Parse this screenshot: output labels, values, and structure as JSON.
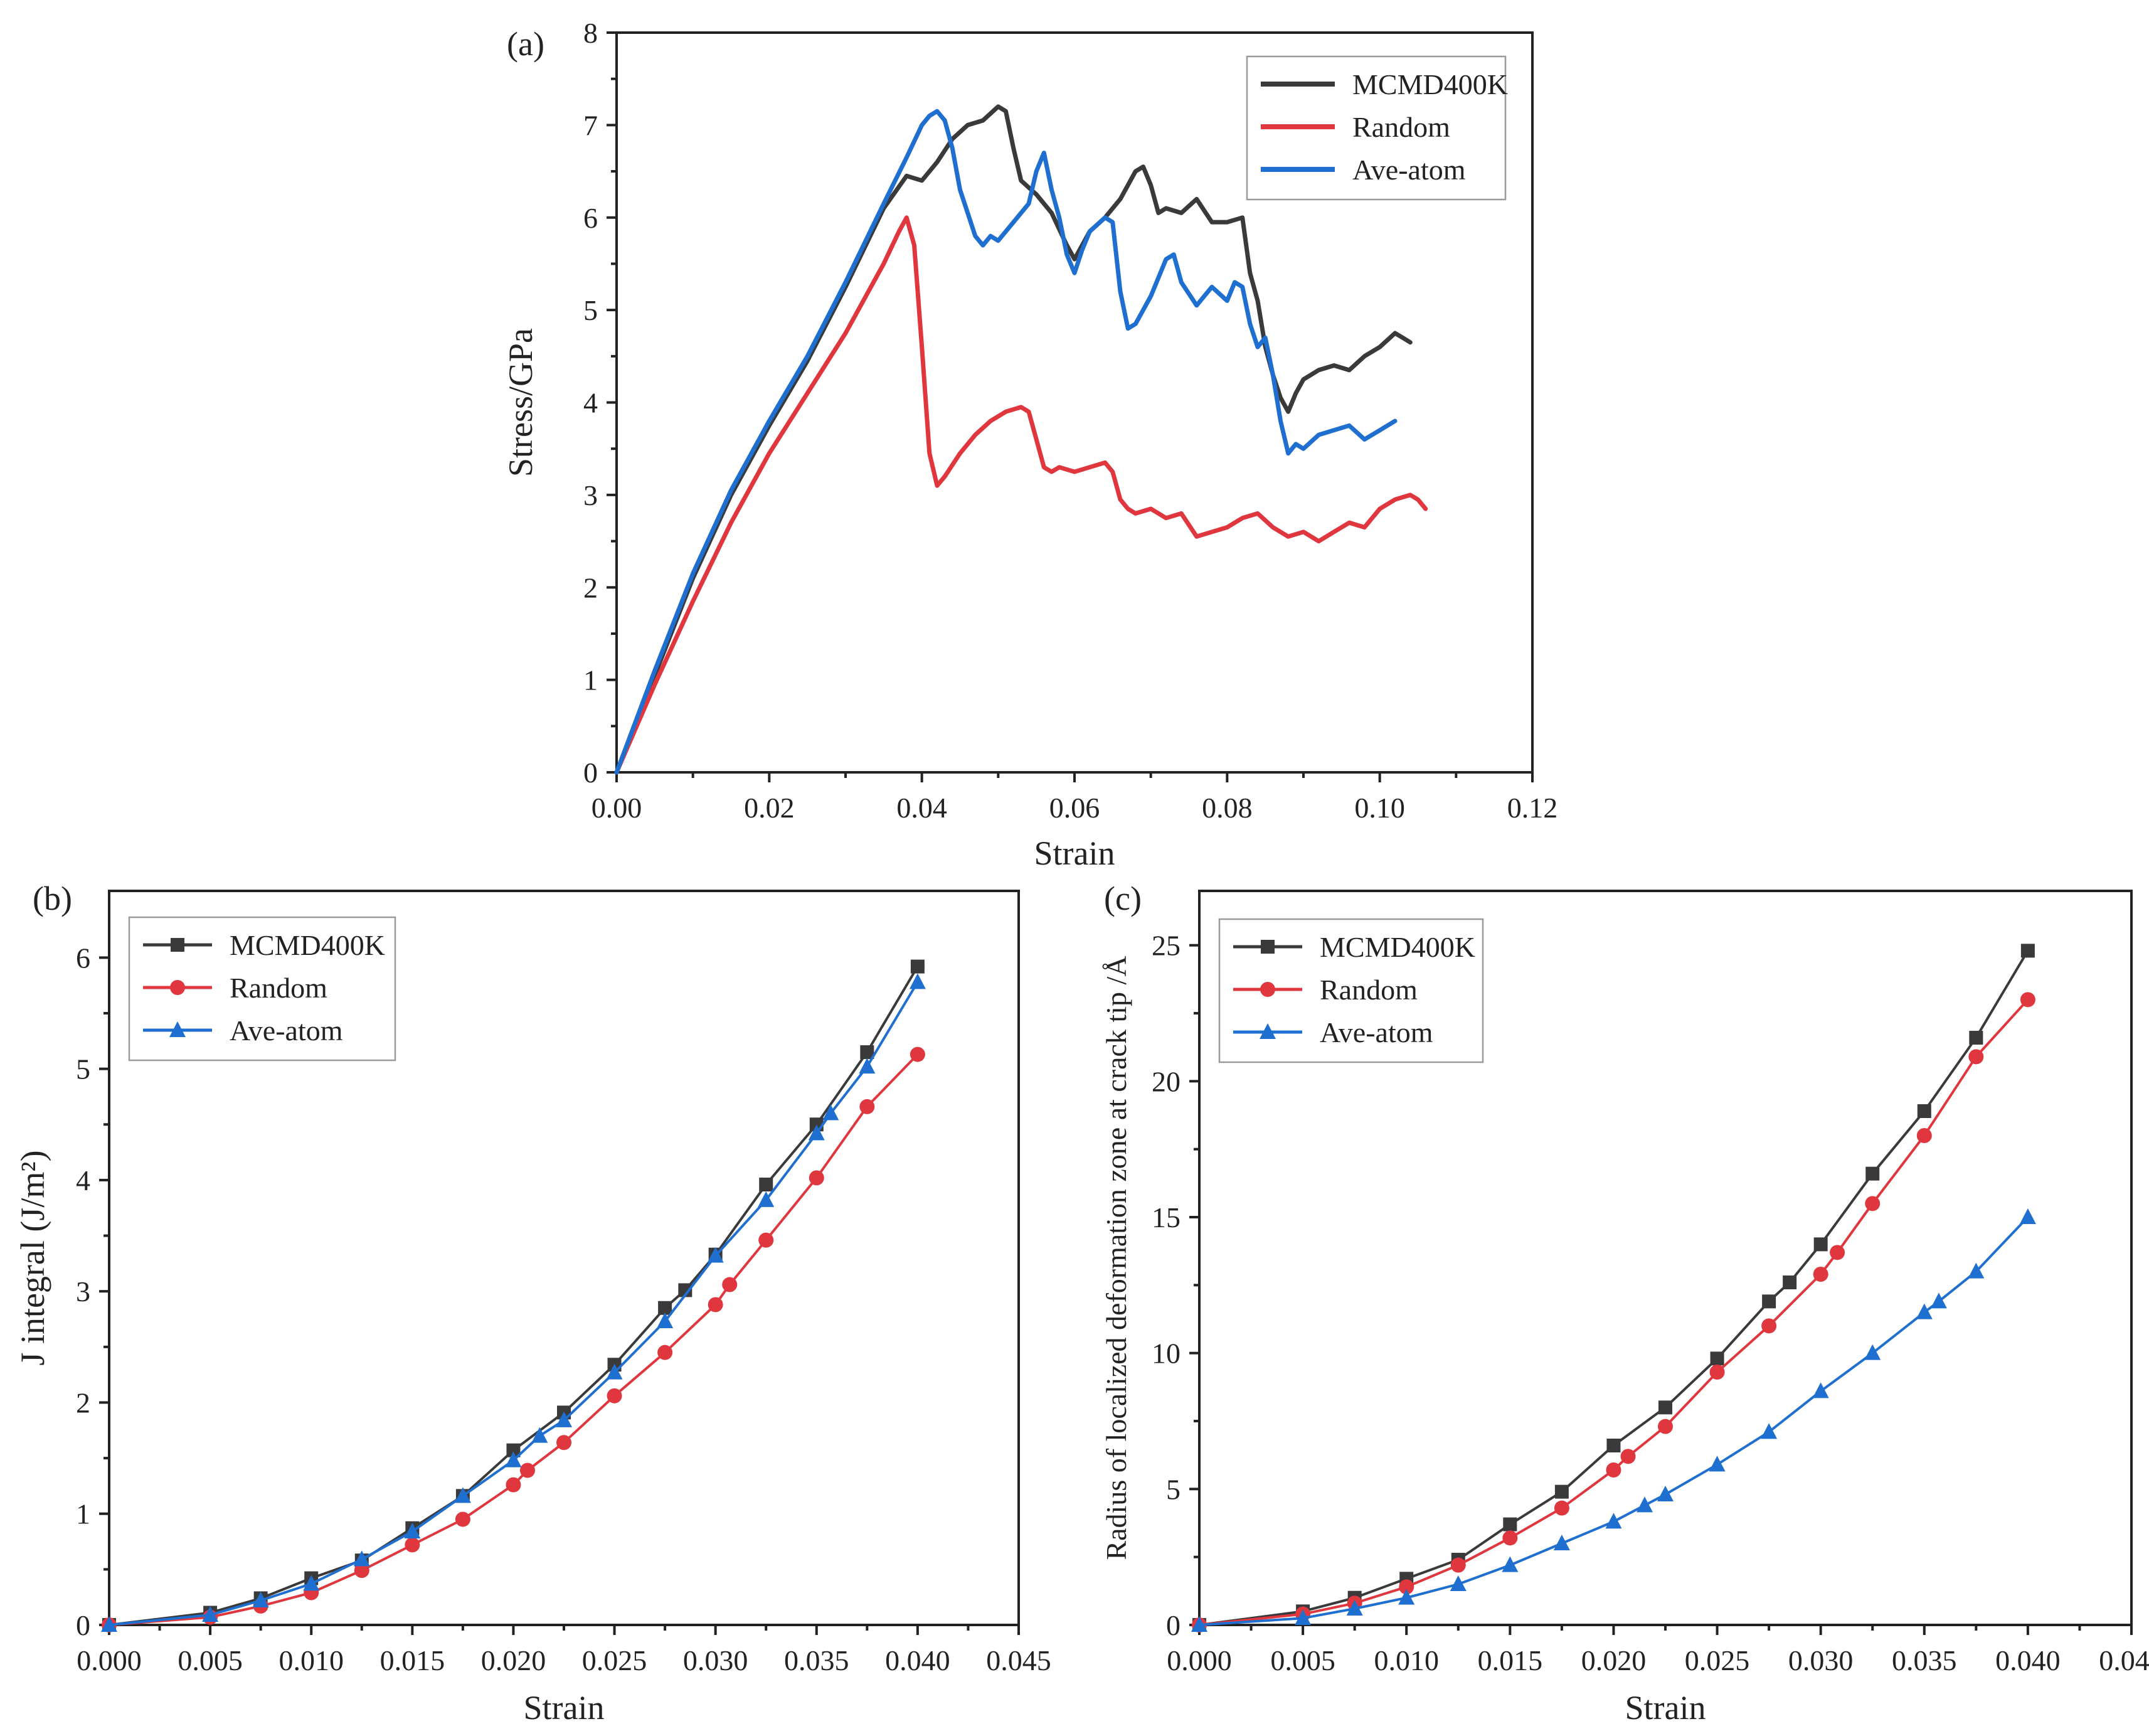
{
  "chart_data": [
    {
      "id": "a",
      "type": "line",
      "panel_label": "(a)",
      "xlabel": "Strain",
      "ylabel": "Stress/GPa",
      "xlim": [
        0,
        0.12
      ],
      "ylim": [
        0,
        8
      ],
      "xticks": [
        0,
        0.02,
        0.04,
        0.06,
        0.08,
        0.1,
        0.12
      ],
      "xtick_labels": [
        "0.00",
        "0.02",
        "0.04",
        "0.06",
        "0.08",
        "0.10",
        "0.12"
      ],
      "yticks": [
        0,
        1,
        2,
        3,
        4,
        5,
        6,
        7,
        8
      ],
      "ytick_labels": [
        "0",
        "1",
        "2",
        "3",
        "4",
        "5",
        "6",
        "7",
        "8"
      ],
      "legend_position": "top-right",
      "series": [
        {
          "name": "MCMD400K",
          "color": "#3a3a3a",
          "x": [
            0,
            0.005,
            0.01,
            0.015,
            0.02,
            0.025,
            0.03,
            0.035,
            0.038,
            0.04,
            0.042,
            0.044,
            0.046,
            0.048,
            0.05,
            0.051,
            0.052,
            0.053,
            0.055,
            0.057,
            0.059,
            0.06,
            0.061,
            0.062,
            0.064,
            0.066,
            0.068,
            0.069,
            0.07,
            0.071,
            0.072,
            0.074,
            0.076,
            0.078,
            0.08,
            0.082,
            0.083,
            0.084,
            0.085,
            0.086,
            0.087,
            0.088,
            0.089,
            0.09,
            0.092,
            0.094,
            0.096,
            0.098,
            0.1,
            0.102,
            0.103,
            0.104
          ],
          "y": [
            0,
            1.05,
            2.1,
            3.0,
            3.75,
            4.45,
            5.25,
            6.1,
            6.45,
            6.4,
            6.6,
            6.85,
            7.0,
            7.05,
            7.2,
            7.15,
            6.75,
            6.4,
            6.25,
            6.05,
            5.7,
            5.55,
            5.7,
            5.85,
            6.0,
            6.2,
            6.5,
            6.55,
            6.35,
            6.05,
            6.1,
            6.05,
            6.2,
            5.95,
            5.95,
            6.0,
            5.4,
            5.1,
            4.6,
            4.3,
            4.05,
            3.9,
            4.1,
            4.25,
            4.35,
            4.4,
            4.35,
            4.5,
            4.6,
            4.75,
            4.7,
            4.65
          ]
        },
        {
          "name": "Random",
          "color": "#e0373f",
          "x": [
            0,
            0.005,
            0.01,
            0.015,
            0.02,
            0.025,
            0.03,
            0.035,
            0.037,
            0.038,
            0.039,
            0.04,
            0.041,
            0.042,
            0.043,
            0.045,
            0.047,
            0.049,
            0.051,
            0.053,
            0.054,
            0.055,
            0.056,
            0.057,
            0.058,
            0.06,
            0.062,
            0.064,
            0.065,
            0.066,
            0.067,
            0.068,
            0.07,
            0.072,
            0.074,
            0.076,
            0.078,
            0.08,
            0.082,
            0.084,
            0.086,
            0.088,
            0.09,
            0.092,
            0.094,
            0.096,
            0.098,
            0.1,
            0.102,
            0.104,
            0.105,
            0.106
          ],
          "y": [
            0,
            0.95,
            1.85,
            2.7,
            3.45,
            4.1,
            4.75,
            5.5,
            5.85,
            6.0,
            5.7,
            4.6,
            3.45,
            3.1,
            3.2,
            3.45,
            3.65,
            3.8,
            3.9,
            3.95,
            3.9,
            3.6,
            3.3,
            3.25,
            3.3,
            3.25,
            3.3,
            3.35,
            3.25,
            2.95,
            2.85,
            2.8,
            2.85,
            2.75,
            2.8,
            2.55,
            2.6,
            2.65,
            2.75,
            2.8,
            2.65,
            2.55,
            2.6,
            2.5,
            2.6,
            2.7,
            2.65,
            2.85,
            2.95,
            3.0,
            2.95,
            2.85
          ]
        },
        {
          "name": "Ave-atom",
          "color": "#1f6fd1",
          "x": [
            0,
            0.005,
            0.01,
            0.015,
            0.02,
            0.025,
            0.03,
            0.035,
            0.038,
            0.04,
            0.041,
            0.042,
            0.043,
            0.044,
            0.045,
            0.046,
            0.047,
            0.048,
            0.049,
            0.05,
            0.052,
            0.054,
            0.055,
            0.056,
            0.057,
            0.058,
            0.059,
            0.06,
            0.061,
            0.062,
            0.064,
            0.065,
            0.066,
            0.067,
            0.068,
            0.07,
            0.072,
            0.073,
            0.074,
            0.076,
            0.078,
            0.08,
            0.081,
            0.082,
            0.083,
            0.084,
            0.085,
            0.086,
            0.087,
            0.088,
            0.089,
            0.09,
            0.092,
            0.094,
            0.096,
            0.098,
            0.1,
            0.102
          ],
          "y": [
            0,
            1.1,
            2.15,
            3.05,
            3.8,
            4.5,
            5.3,
            6.15,
            6.65,
            7.0,
            7.1,
            7.15,
            7.05,
            6.75,
            6.3,
            6.05,
            5.8,
            5.7,
            5.8,
            5.75,
            5.95,
            6.15,
            6.5,
            6.7,
            6.3,
            6.0,
            5.6,
            5.4,
            5.65,
            5.85,
            6.0,
            5.95,
            5.2,
            4.8,
            4.85,
            5.15,
            5.55,
            5.6,
            5.3,
            5.05,
            5.25,
            5.1,
            5.3,
            5.25,
            4.85,
            4.6,
            4.7,
            4.3,
            3.8,
            3.45,
            3.55,
            3.5,
            3.65,
            3.7,
            3.75,
            3.6,
            3.7,
            3.8
          ]
        }
      ]
    },
    {
      "id": "b",
      "type": "line",
      "panel_label": "(b)",
      "xlabel": "Strain",
      "ylabel": "J integral (J/m²)",
      "xlim": [
        0,
        0.045
      ],
      "ylim": [
        0,
        6.6
      ],
      "xticks": [
        0,
        0.005,
        0.01,
        0.015,
        0.02,
        0.025,
        0.03,
        0.035,
        0.04,
        0.045
      ],
      "xtick_labels": [
        "0.000",
        "0.005",
        "0.010",
        "0.015",
        "0.020",
        "0.025",
        "0.030",
        "0.035",
        "0.040",
        "0.045"
      ],
      "yticks": [
        0,
        1,
        2,
        3,
        4,
        5,
        6
      ],
      "ytick_labels": [
        "0",
        "1",
        "2",
        "3",
        "4",
        "5",
        "6"
      ],
      "legend_position": "top-left",
      "series": [
        {
          "name": "MCMD400K",
          "color": "#3a3a3a",
          "marker": "square",
          "x": [
            0,
            0.005,
            0.0075,
            0.01,
            0.0125,
            0.015,
            0.0175,
            0.02,
            0.0225,
            0.025,
            0.0275,
            0.0285,
            0.03,
            0.0325,
            0.035,
            0.0375,
            0.04
          ],
          "y": [
            0,
            0.11,
            0.24,
            0.42,
            0.58,
            0.87,
            1.16,
            1.57,
            1.91,
            2.34,
            2.85,
            3.01,
            3.33,
            3.96,
            4.5,
            5.15,
            5.92
          ]
        },
        {
          "name": "Random",
          "color": "#e0373f",
          "marker": "circle",
          "x": [
            0,
            0.005,
            0.0075,
            0.01,
            0.0125,
            0.015,
            0.0175,
            0.02,
            0.0207,
            0.0225,
            0.025,
            0.0275,
            0.03,
            0.0307,
            0.0325,
            0.035,
            0.0375,
            0.04
          ],
          "y": [
            0,
            0.07,
            0.17,
            0.29,
            0.49,
            0.72,
            0.95,
            1.26,
            1.39,
            1.64,
            2.06,
            2.45,
            2.88,
            3.06,
            3.46,
            4.02,
            4.66,
            5.13
          ]
        },
        {
          "name": "Ave-atom",
          "color": "#1f6fd1",
          "marker": "triangle",
          "x": [
            0,
            0.005,
            0.0075,
            0.01,
            0.0125,
            0.015,
            0.0175,
            0.02,
            0.0213,
            0.0225,
            0.025,
            0.0275,
            0.03,
            0.0325,
            0.035,
            0.0357,
            0.0375,
            0.04
          ],
          "y": [
            0,
            0.09,
            0.22,
            0.37,
            0.59,
            0.84,
            1.16,
            1.48,
            1.7,
            1.84,
            2.27,
            2.73,
            3.32,
            3.82,
            4.42,
            4.6,
            5.02,
            5.78
          ]
        }
      ]
    },
    {
      "id": "c",
      "type": "line",
      "panel_label": "(c)",
      "xlabel": "Strain",
      "ylabel": "Radius of localized deformation zone at crack tip /Å",
      "xlim": [
        0,
        0.045
      ],
      "ylim": [
        0,
        27
      ],
      "xticks": [
        0,
        0.005,
        0.01,
        0.015,
        0.02,
        0.025,
        0.03,
        0.035,
        0.04,
        0.045
      ],
      "xtick_labels": [
        "0.000",
        "0.005",
        "0.010",
        "0.015",
        "0.020",
        "0.025",
        "0.030",
        "0.035",
        "0.040",
        "0.045"
      ],
      "yticks": [
        0,
        5,
        10,
        15,
        20,
        25
      ],
      "ytick_labels": [
        "0",
        "5",
        "10",
        "15",
        "20",
        "25"
      ],
      "legend_position": "top-left",
      "series": [
        {
          "name": "MCMD400K",
          "color": "#3a3a3a",
          "marker": "square",
          "x": [
            0,
            0.005,
            0.0075,
            0.01,
            0.0125,
            0.015,
            0.0175,
            0.02,
            0.0225,
            0.025,
            0.0275,
            0.0285,
            0.03,
            0.0325,
            0.035,
            0.0375,
            0.04
          ],
          "y": [
            0,
            0.5,
            1.0,
            1.7,
            2.4,
            3.7,
            4.9,
            6.6,
            8.0,
            9.8,
            11.9,
            12.6,
            14.0,
            16.6,
            18.9,
            21.6,
            24.8
          ]
        },
        {
          "name": "Random",
          "color": "#e0373f",
          "marker": "circle",
          "x": [
            0,
            0.005,
            0.0075,
            0.01,
            0.0125,
            0.015,
            0.0175,
            0.02,
            0.0207,
            0.0225,
            0.025,
            0.0275,
            0.03,
            0.0308,
            0.0325,
            0.035,
            0.0375,
            0.04
          ],
          "y": [
            0,
            0.4,
            0.8,
            1.4,
            2.2,
            3.2,
            4.3,
            5.7,
            6.2,
            7.3,
            9.3,
            11.0,
            12.9,
            13.7,
            15.5,
            18.0,
            20.9,
            23.0
          ]
        },
        {
          "name": "Ave-atom",
          "color": "#1f6fd1",
          "marker": "triangle",
          "x": [
            0,
            0.005,
            0.0075,
            0.01,
            0.0125,
            0.015,
            0.0175,
            0.02,
            0.0215,
            0.0225,
            0.025,
            0.0275,
            0.03,
            0.0325,
            0.035,
            0.0357,
            0.0375,
            0.04
          ],
          "y": [
            0,
            0.25,
            0.6,
            1.0,
            1.5,
            2.2,
            3.0,
            3.8,
            4.4,
            4.8,
            5.9,
            7.1,
            8.6,
            10.0,
            11.5,
            11.9,
            13.0,
            15.0
          ]
        }
      ]
    }
  ]
}
